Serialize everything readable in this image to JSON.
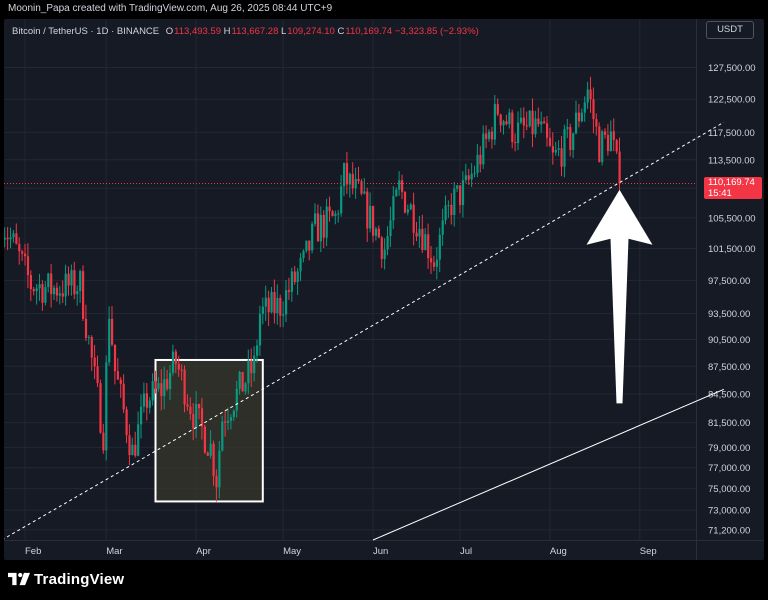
{
  "header": {
    "watermark": "Moonin_Papa created with TradingView.com, Aug 26, 2025 08:44 UTC+9"
  },
  "symbol": {
    "name": "Bitcoin / TetherUS · 1D · BINANCE",
    "open_label": "O",
    "open": "113,493.59",
    "high_label": "H",
    "high": "113,667.28",
    "low_label": "L",
    "low": "109,274.10",
    "close_label": "C",
    "close": "110,169.74",
    "change": "−3,323.85 (−2.93%)",
    "currency": "USDT"
  },
  "last_price": {
    "price": "110,169.74",
    "countdown": "15:41"
  },
  "footer": {
    "brand": "TradingView"
  },
  "colors": {
    "up": "#089981",
    "down": "#f23645",
    "bg": "#161a25",
    "grid": "#232734",
    "text": "#d1d4dc",
    "trendline": "#ffffff",
    "box_fill": "#3a3a2a",
    "box_border": "#ffffff",
    "arrow": "#ffffff"
  },
  "chart_data": {
    "type": "candlestick",
    "title": "Bitcoin / TetherUS · 1D · BINANCE",
    "x_tick_labels": [
      "Feb",
      "Mar",
      "Apr",
      "May",
      "Jun",
      "Jul",
      "Aug",
      "Sep"
    ],
    "y_tick_labels": [
      "127,500.00",
      "122,500.00",
      "117,500.00",
      "113,500.00",
      "109,500.00",
      "105,500.00",
      "101,500.00",
      "97,500.00",
      "93,500.00",
      "90,500.00",
      "87,500.00",
      "84,500.00",
      "81,500.00",
      "79,000.00",
      "77,000.00",
      "75,000.00",
      "73,000.00",
      "71,200.00"
    ],
    "y_scale": "log",
    "ylim": [
      70300,
      131000
    ],
    "grid": true,
    "series": [
      {
        "values": [
          {
            "m": "Jan",
            "d": 24,
            "price": 105000
          },
          {
            "m": "Jan",
            "d": 28,
            "price": 102000
          },
          {
            "m": "Feb",
            "d": 3,
            "price": 97000
          },
          {
            "m": "Feb",
            "d": 10,
            "price": 96500
          },
          {
            "m": "Feb",
            "d": 20,
            "price": 97000
          },
          {
            "m": "Feb",
            "d": 25,
            "price": 86000
          },
          {
            "m": "Feb",
            "d": 28,
            "price": 80500
          },
          {
            "m": "Mar",
            "d": 2,
            "price": 94000
          },
          {
            "m": "Mar",
            "d": 4,
            "price": 87000
          },
          {
            "m": "Mar",
            "d": 10,
            "price": 78500
          },
          {
            "m": "Mar",
            "d": 15,
            "price": 84000
          },
          {
            "m": "Mar",
            "d": 20,
            "price": 85000
          },
          {
            "m": "Mar",
            "d": 25,
            "price": 88000
          },
          {
            "m": "Mar",
            "d": 31,
            "price": 82500
          },
          {
            "m": "Apr",
            "d": 6,
            "price": 79000
          },
          {
            "m": "Apr",
            "d": 8,
            "price": 76000
          },
          {
            "m": "Apr",
            "d": 10,
            "price": 82000
          },
          {
            "m": "Apr",
            "d": 15,
            "price": 84500
          },
          {
            "m": "Apr",
            "d": 21,
            "price": 87500
          },
          {
            "m": "Apr",
            "d": 23,
            "price": 93500
          },
          {
            "m": "Apr",
            "d": 30,
            "price": 94500
          },
          {
            "m": "May",
            "d": 8,
            "price": 99500
          },
          {
            "m": "May",
            "d": 12,
            "price": 104000
          },
          {
            "m": "May",
            "d": 19,
            "price": 105500
          },
          {
            "m": "May",
            "d": 22,
            "price": 111000
          },
          {
            "m": "May",
            "d": 27,
            "price": 108500
          },
          {
            "m": "Jun",
            "d": 5,
            "price": 101500
          },
          {
            "m": "Jun",
            "d": 10,
            "price": 109500
          },
          {
            "m": "Jun",
            "d": 17,
            "price": 104500
          },
          {
            "m": "Jun",
            "d": 22,
            "price": 100000
          },
          {
            "m": "Jun",
            "d": 28,
            "price": 107500
          },
          {
            "m": "Jul",
            "d": 3,
            "price": 109500
          },
          {
            "m": "Jul",
            "d": 10,
            "price": 116000
          },
          {
            "m": "Jul",
            "d": 14,
            "price": 121000
          },
          {
            "m": "Jul",
            "d": 20,
            "price": 117500
          },
          {
            "m": "Jul",
            "d": 28,
            "price": 118500
          },
          {
            "m": "Aug",
            "d": 2,
            "price": 113500
          },
          {
            "m": "Aug",
            "d": 8,
            "price": 116500
          },
          {
            "m": "Aug",
            "d": 14,
            "price": 124000
          },
          {
            "m": "Aug",
            "d": 18,
            "price": 115500
          },
          {
            "m": "Aug",
            "d": 22,
            "price": 117000
          },
          {
            "m": "Aug",
            "d": 25,
            "price": 110169.74
          }
        ]
      }
    ],
    "annotations": {
      "support_trendline_dashed": [
        {
          "m": "Jan",
          "d": 24,
          "price": 70300
        },
        {
          "m": "Sep",
          "d": 30,
          "price": 119000
        }
      ],
      "trendline_solid": [
        {
          "m": "Jun",
          "d": 1,
          "price": 70300
        },
        {
          "m": "Sep",
          "d": 30,
          "price": 85000
        }
      ],
      "highlight_box": {
        "from": {
          "m": "Mar",
          "d": 18
        },
        "to": {
          "m": "Apr",
          "d": 24
        },
        "high": 88200,
        "low": 73800
      },
      "arrow": {
        "at": {
          "m": "Aug",
          "d": 25
        },
        "from_price": 83500,
        "to_price": 109300
      },
      "last_price_line": 110169.74
    }
  }
}
